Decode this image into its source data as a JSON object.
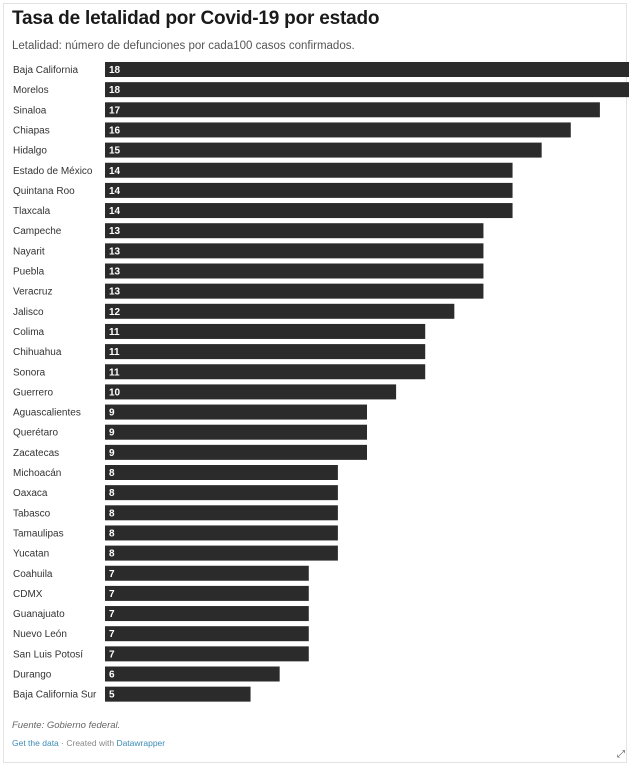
{
  "title": "Tasa de letalidad por Covid-19 por estado",
  "subtitle": "Letalidad: número de defunciones por cada100 casos confirmados.",
  "source": "Fuente: Gobierno federal.",
  "credits": {
    "get_data": "Get the data",
    "separator": " · Created with ",
    "tool": "Datawrapper"
  },
  "colors": {
    "bar": "#2b2b2b",
    "value_text": "#ffffff"
  },
  "chart_data": {
    "type": "bar",
    "orientation": "horizontal",
    "categories": [
      "Baja California",
      "Morelos",
      "Sinaloa",
      "Chiapas",
      "Hidalgo",
      "Estado de México",
      "Quintana Roo",
      "Tlaxcala",
      "Campeche",
      "Nayarit",
      "Puebla",
      "Veracruz",
      "Jalisco",
      "Colima",
      "Chihuahua",
      "Sonora",
      "Guerrero",
      "Aguascalientes",
      "Querétaro",
      "Zacatecas",
      "Michoacán",
      "Oaxaca",
      "Tabasco",
      "Tamaulipas",
      "Yucatan",
      "Coahuila",
      "CDMX",
      "Guanajuato",
      "Nuevo León",
      "San Luis Potosí",
      "Durango",
      "Baja California Sur"
    ],
    "values": [
      18,
      18,
      17,
      16,
      15,
      14,
      14,
      14,
      13,
      13,
      13,
      13,
      12,
      11,
      11,
      11,
      10,
      9,
      9,
      9,
      8,
      8,
      8,
      8,
      8,
      7,
      7,
      7,
      7,
      7,
      6,
      5
    ],
    "value_labels": true,
    "xlim": [
      0,
      18
    ],
    "grid": false
  }
}
